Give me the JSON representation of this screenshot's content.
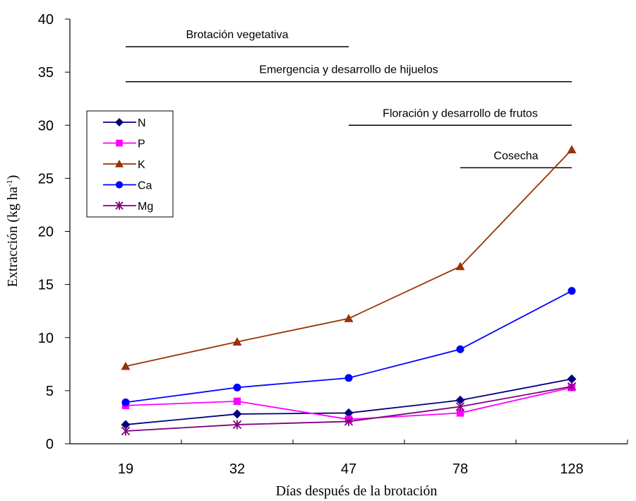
{
  "chart_data": {
    "type": "line",
    "xlabel": "Días después de la brotación",
    "ylabel": "Extracción (kg ha",
    "ylabel_sup": "-1",
    "ylabel_close": ")",
    "categories": [
      "19",
      "32",
      "47",
      "78",
      "128"
    ],
    "ylim": [
      0,
      40
    ],
    "yticks": [
      "0",
      "5",
      "10",
      "15",
      "20",
      "25",
      "30",
      "35",
      "40"
    ],
    "grid": false,
    "legend_position": "left",
    "series": [
      {
        "name": "N",
        "values": [
          1.8,
          2.8,
          2.9,
          4.1,
          6.1
        ],
        "color": "#000080",
        "marker": "diamond"
      },
      {
        "name": "P",
        "values": [
          3.6,
          4.0,
          2.3,
          2.9,
          5.3
        ],
        "color": "#ff00ff",
        "marker": "square"
      },
      {
        "name": "K",
        "values": [
          7.3,
          9.6,
          11.8,
          16.7,
          27.7
        ],
        "color": "#993300",
        "marker": "triangle"
      },
      {
        "name": "Ca",
        "values": [
          3.9,
          5.3,
          6.2,
          8.9,
          14.4
        ],
        "color": "#0000ff",
        "marker": "circle"
      },
      {
        "name": "Mg",
        "values": [
          1.2,
          1.8,
          2.1,
          3.5,
          5.4
        ],
        "color": "#800080",
        "marker": "asterisk"
      }
    ],
    "annotations": [
      {
        "text": "Brotación vegetativa",
        "y": 37.4,
        "x_from": 0,
        "x_to": 2.0
      },
      {
        "text": "Emergencia y desarrollo de hijuelos",
        "y": 34.1,
        "x_from": 0,
        "x_to": 4
      },
      {
        "text": "Floración y desarrollo de frutos",
        "y": 30.0,
        "x_from": 2.0,
        "x_to": 4
      },
      {
        "text": "Cosecha",
        "y": 26.0,
        "x_from": 3.0,
        "x_to": 4
      }
    ]
  }
}
